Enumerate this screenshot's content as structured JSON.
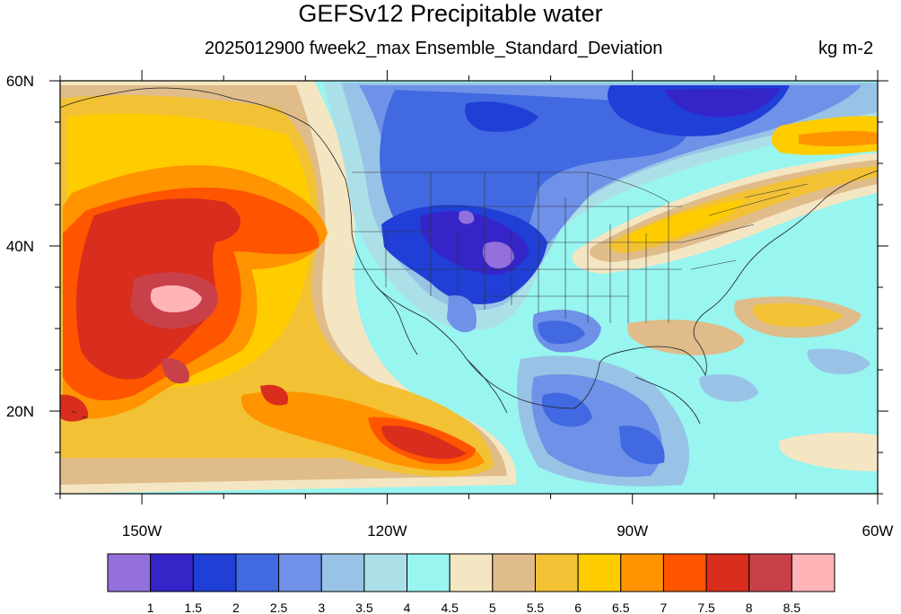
{
  "title": "GEFSv12 Precipitable water",
  "subtitle": "2025012900 fweek2_max Ensemble_Standard_Deviation",
  "units": "kg m-2",
  "map": {
    "lon_range": [
      -160,
      -60
    ],
    "lat_range": [
      10,
      60
    ],
    "x_ticks": [
      {
        "lon": -150,
        "label": "150W"
      },
      {
        "lon": -120,
        "label": "120W"
      },
      {
        "lon": -90,
        "label": "90W"
      },
      {
        "lon": -60,
        "label": "60W"
      }
    ],
    "y_ticks": [
      {
        "lat": 60,
        "label": "60N"
      },
      {
        "lat": 40,
        "label": "40N"
      },
      {
        "lat": 20,
        "label": "20N"
      }
    ],
    "features": [
      "coastlines",
      "us-state-borders",
      "country-borders"
    ]
  },
  "colorbar": {
    "levels": [
      "1",
      "1.5",
      "2",
      "2.5",
      "3",
      "3.5",
      "4",
      "4.5",
      "5",
      "5.5",
      "6",
      "6.5",
      "7",
      "7.5",
      "8",
      "8.5"
    ],
    "colors": [
      "#9370db",
      "#3525c8",
      "#1f3fd6",
      "#4169e1",
      "#6f91e8",
      "#98c3e6",
      "#ace0e8",
      "#98f5f0",
      "#f5e6c3",
      "#dfbc8a",
      "#f2c234",
      "#ffcc00",
      "#ff9400",
      "#ff5500",
      "#d92d1d",
      "#c84149",
      "#ffb4b8"
    ]
  }
}
